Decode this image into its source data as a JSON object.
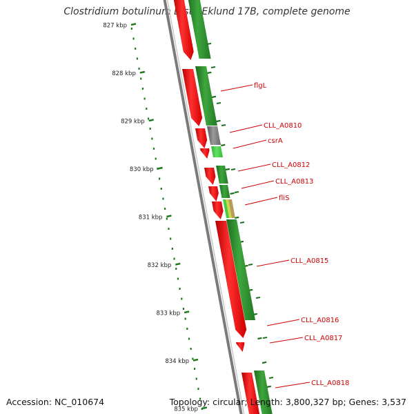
{
  "title": "Clostridium botulinum B str. Eklund 17B, complete genome",
  "footer": {
    "accession": "Accession: NC_010674",
    "topology": "Topology: circular; Length: 3,800,327 bp; Genes: 3,537"
  },
  "ruler": {
    "unit": "kbp",
    "ticks": [
      827,
      828,
      829,
      830,
      831,
      832,
      833,
      834,
      835
    ]
  },
  "colors": {
    "reverse_strand": "#ee0000",
    "forward_strand": "#2a8a2a",
    "forward_strand_light": "#44cc44",
    "unassigned": "#808080",
    "flis_yellow": "#c8d84a",
    "flis_tan": "#b89a5a",
    "backbone": "#888888",
    "ruler_dots": "#1f7a1f",
    "label_text": "#cc0000",
    "leader_line": "#cc0000"
  },
  "genes": [
    {
      "label": "flgL"
    },
    {
      "label": "CLL_A0810"
    },
    {
      "label": "csrA"
    },
    {
      "label": "CLL_A0812"
    },
    {
      "label": "CLL_A0813"
    },
    {
      "label": "fliS"
    },
    {
      "label": "CLL_A0815"
    },
    {
      "label": "CLL_A0816"
    },
    {
      "label": "CLL_A0817"
    },
    {
      "label": "CLL_A0818"
    }
  ]
}
